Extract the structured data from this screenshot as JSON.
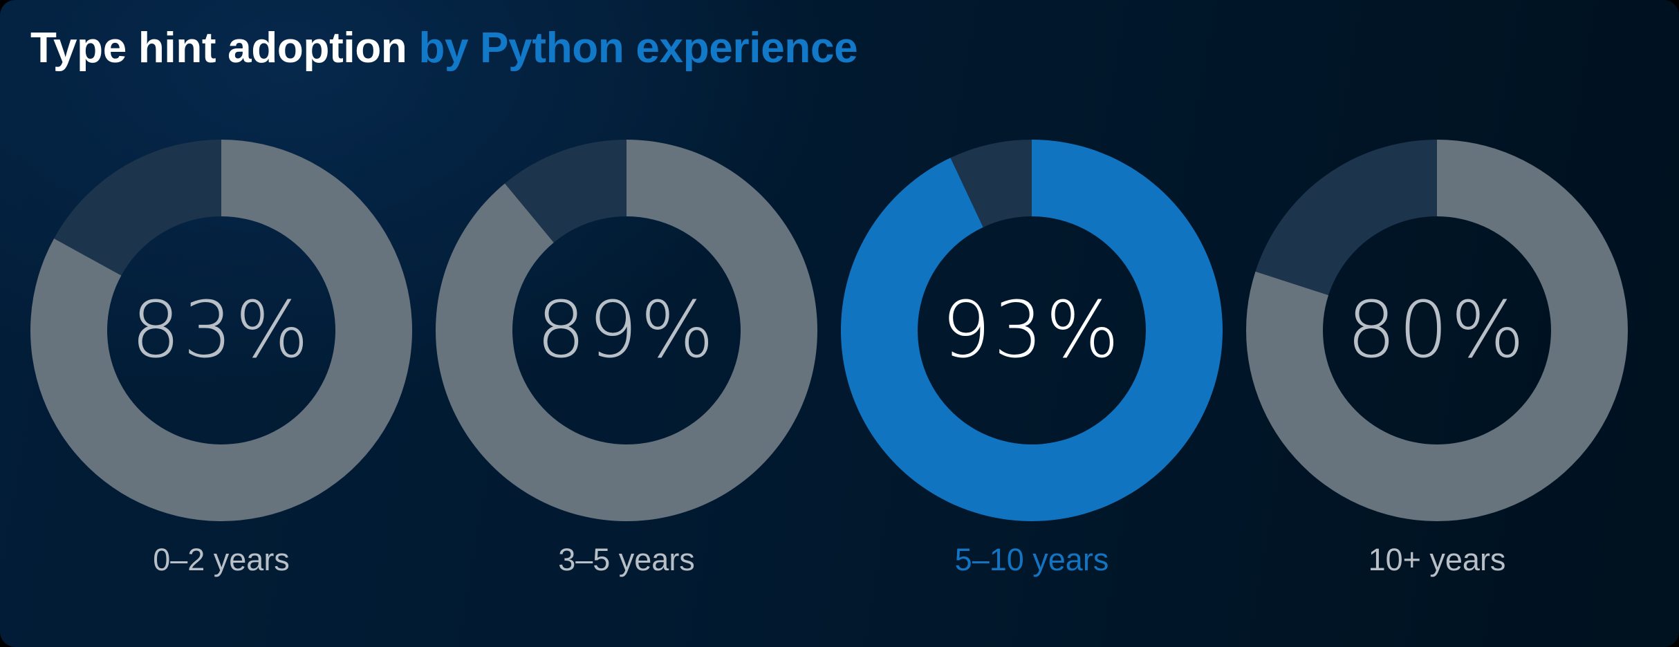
{
  "title": {
    "main": "Type hint adoption",
    "accent": "by Python experience"
  },
  "colors": {
    "filled": "#67737d",
    "filled_highlight": "#1174c0",
    "remaining": "#1c344c",
    "text": "#b8bfc7",
    "text_highlight": "#ffffff",
    "accent": "#1278c8"
  },
  "donuts": [
    {
      "label": "0–2 years",
      "value": 83,
      "display": "83%",
      "highlight": false
    },
    {
      "label": "3–5 years",
      "value": 89,
      "display": "89%",
      "highlight": false
    },
    {
      "label": "5–10 years",
      "value": 93,
      "display": "93%",
      "highlight": true
    },
    {
      "label": "10+ years",
      "value": 80,
      "display": "80%",
      "highlight": false
    }
  ],
  "chart_data": {
    "type": "pie",
    "subtype": "donut",
    "title": "Type hint adoption by Python experience",
    "categories": [
      "0–2 years",
      "3–5 years",
      "5–10 years",
      "10+ years"
    ],
    "values": [
      83,
      89,
      93,
      80
    ],
    "unit": "%",
    "highlighted_category": "5–10 years",
    "legend": "none",
    "grid": false
  }
}
